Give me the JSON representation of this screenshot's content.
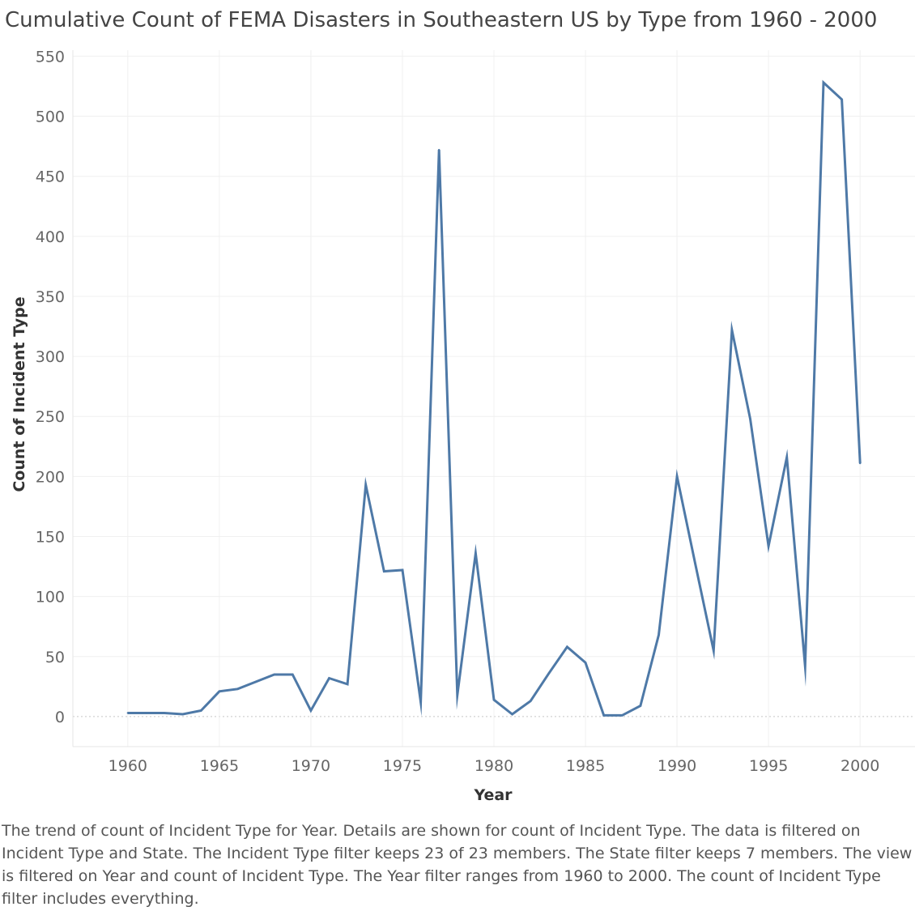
{
  "chart_data": {
    "type": "line",
    "title": "Cumulative Count of FEMA Disasters in Southeastern US by Type from 1960 - 2000",
    "xlabel": "Year",
    "ylabel": "Count of Incident Type",
    "xlim": [
      1957,
      2003
    ],
    "ylim": [
      -25,
      555
    ],
    "x_ticks": [
      1960,
      1965,
      1970,
      1975,
      1980,
      1985,
      1990,
      1995,
      2000
    ],
    "y_ticks": [
      0,
      50,
      100,
      150,
      200,
      250,
      300,
      350,
      400,
      450,
      500,
      550
    ],
    "grid": true,
    "line_color": "#4e79a7",
    "series": [
      {
        "x": [
          1960,
          1961,
          1962,
          1963,
          1964,
          1965,
          1966,
          1967,
          1968,
          1969,
          1970,
          1971,
          1972,
          1973,
          1974,
          1975,
          1976,
          1977,
          1978,
          1979,
          1980,
          1981,
          1982,
          1983,
          1984,
          1985,
          1986,
          1987,
          1988,
          1989,
          1990,
          1991,
          1992,
          1993,
          1994,
          1995,
          1996,
          1997,
          1998,
          1999,
          2000
        ],
        "values": [
          3,
          3,
          3,
          2,
          5,
          21,
          23,
          29,
          35,
          35,
          5,
          32,
          27,
          193,
          121,
          122,
          12,
          472,
          18,
          136,
          14,
          2,
          13,
          36,
          58,
          45,
          1,
          1,
          9,
          68,
          200,
          127,
          55,
          322,
          248,
          142,
          216,
          42,
          528,
          514,
          211
        ]
      }
    ]
  },
  "caption": "The trend of count of Incident Type for Year.  Details are shown for count of Incident Type. The data is filtered on Incident Type and State. The Incident Type filter keeps 23 of 23 members. The State filter keeps 7 members. The view is filtered on Year and count of Incident Type. The Year filter ranges from 1960 to 2000. The count of Incident Type filter includes everything."
}
